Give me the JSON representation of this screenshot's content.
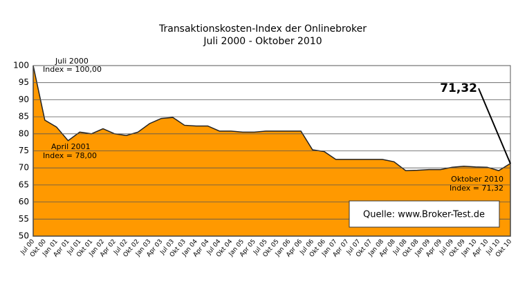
{
  "chart_data": {
    "type": "area",
    "title": "Transaktionskosten-Index der Onlinebroker",
    "subtitle": "Juli 2000 - Oktober 2010",
    "categories": [
      "Jul 00",
      "Okt 00",
      "Jan 01",
      "Apr 01",
      "Jul 01",
      "Okt 01",
      "Jan 02",
      "Apr 02",
      "Jul 02",
      "Okt 02",
      "Jan 03",
      "Apr 03",
      "Jul 03",
      "Okt 03",
      "Jan 04",
      "Apr 04",
      "Jul 04",
      "Okt 04",
      "Jan 05",
      "Apr 05",
      "Jul 05",
      "Okt 05",
      "Jan 06",
      "Apr 06",
      "Jul 06",
      "Okt 06",
      "Jan 07",
      "Apr 07",
      "Jul 07",
      "Okt 07",
      "Jan 08",
      "Apr 08",
      "Jul 08",
      "Okt 08",
      "Jan 09",
      "Apr 09",
      "Jul 09",
      "Okt 09",
      "Jan 10",
      "Apr 10",
      "Jul 10",
      "Okt 10"
    ],
    "values": [
      100,
      84,
      82,
      78,
      80.5,
      80,
      81.5,
      80,
      79.5,
      80.5,
      83,
      84.5,
      84.8,
      82.5,
      82.3,
      82.3,
      80.8,
      80.8,
      80.5,
      80.5,
      80.8,
      80.8,
      80.8,
      80.8,
      75.3,
      74.8,
      72.5,
      72.5,
      72.5,
      72.5,
      72.5,
      71.8,
      69.2,
      69.3,
      69.5,
      69.5,
      70.2,
      70.5,
      70.3,
      70.2,
      69.2,
      71.32
    ],
    "color": "#ff9900",
    "ylim": [
      50,
      100
    ],
    "yticks": [
      50,
      55,
      60,
      65,
      70,
      75,
      80,
      85,
      90,
      95,
      100
    ],
    "grid": true,
    "annotations": {
      "start_date": "Juli 2000",
      "start_index": "Index = 100,00",
      "low_date": "April 2001",
      "low_index": "Index = 78,00",
      "end_date": "Oktober 2010",
      "end_index": "Index = 71,32",
      "end_value": "71,32",
      "source": "Quelle: www.Broker-Test.de"
    }
  }
}
